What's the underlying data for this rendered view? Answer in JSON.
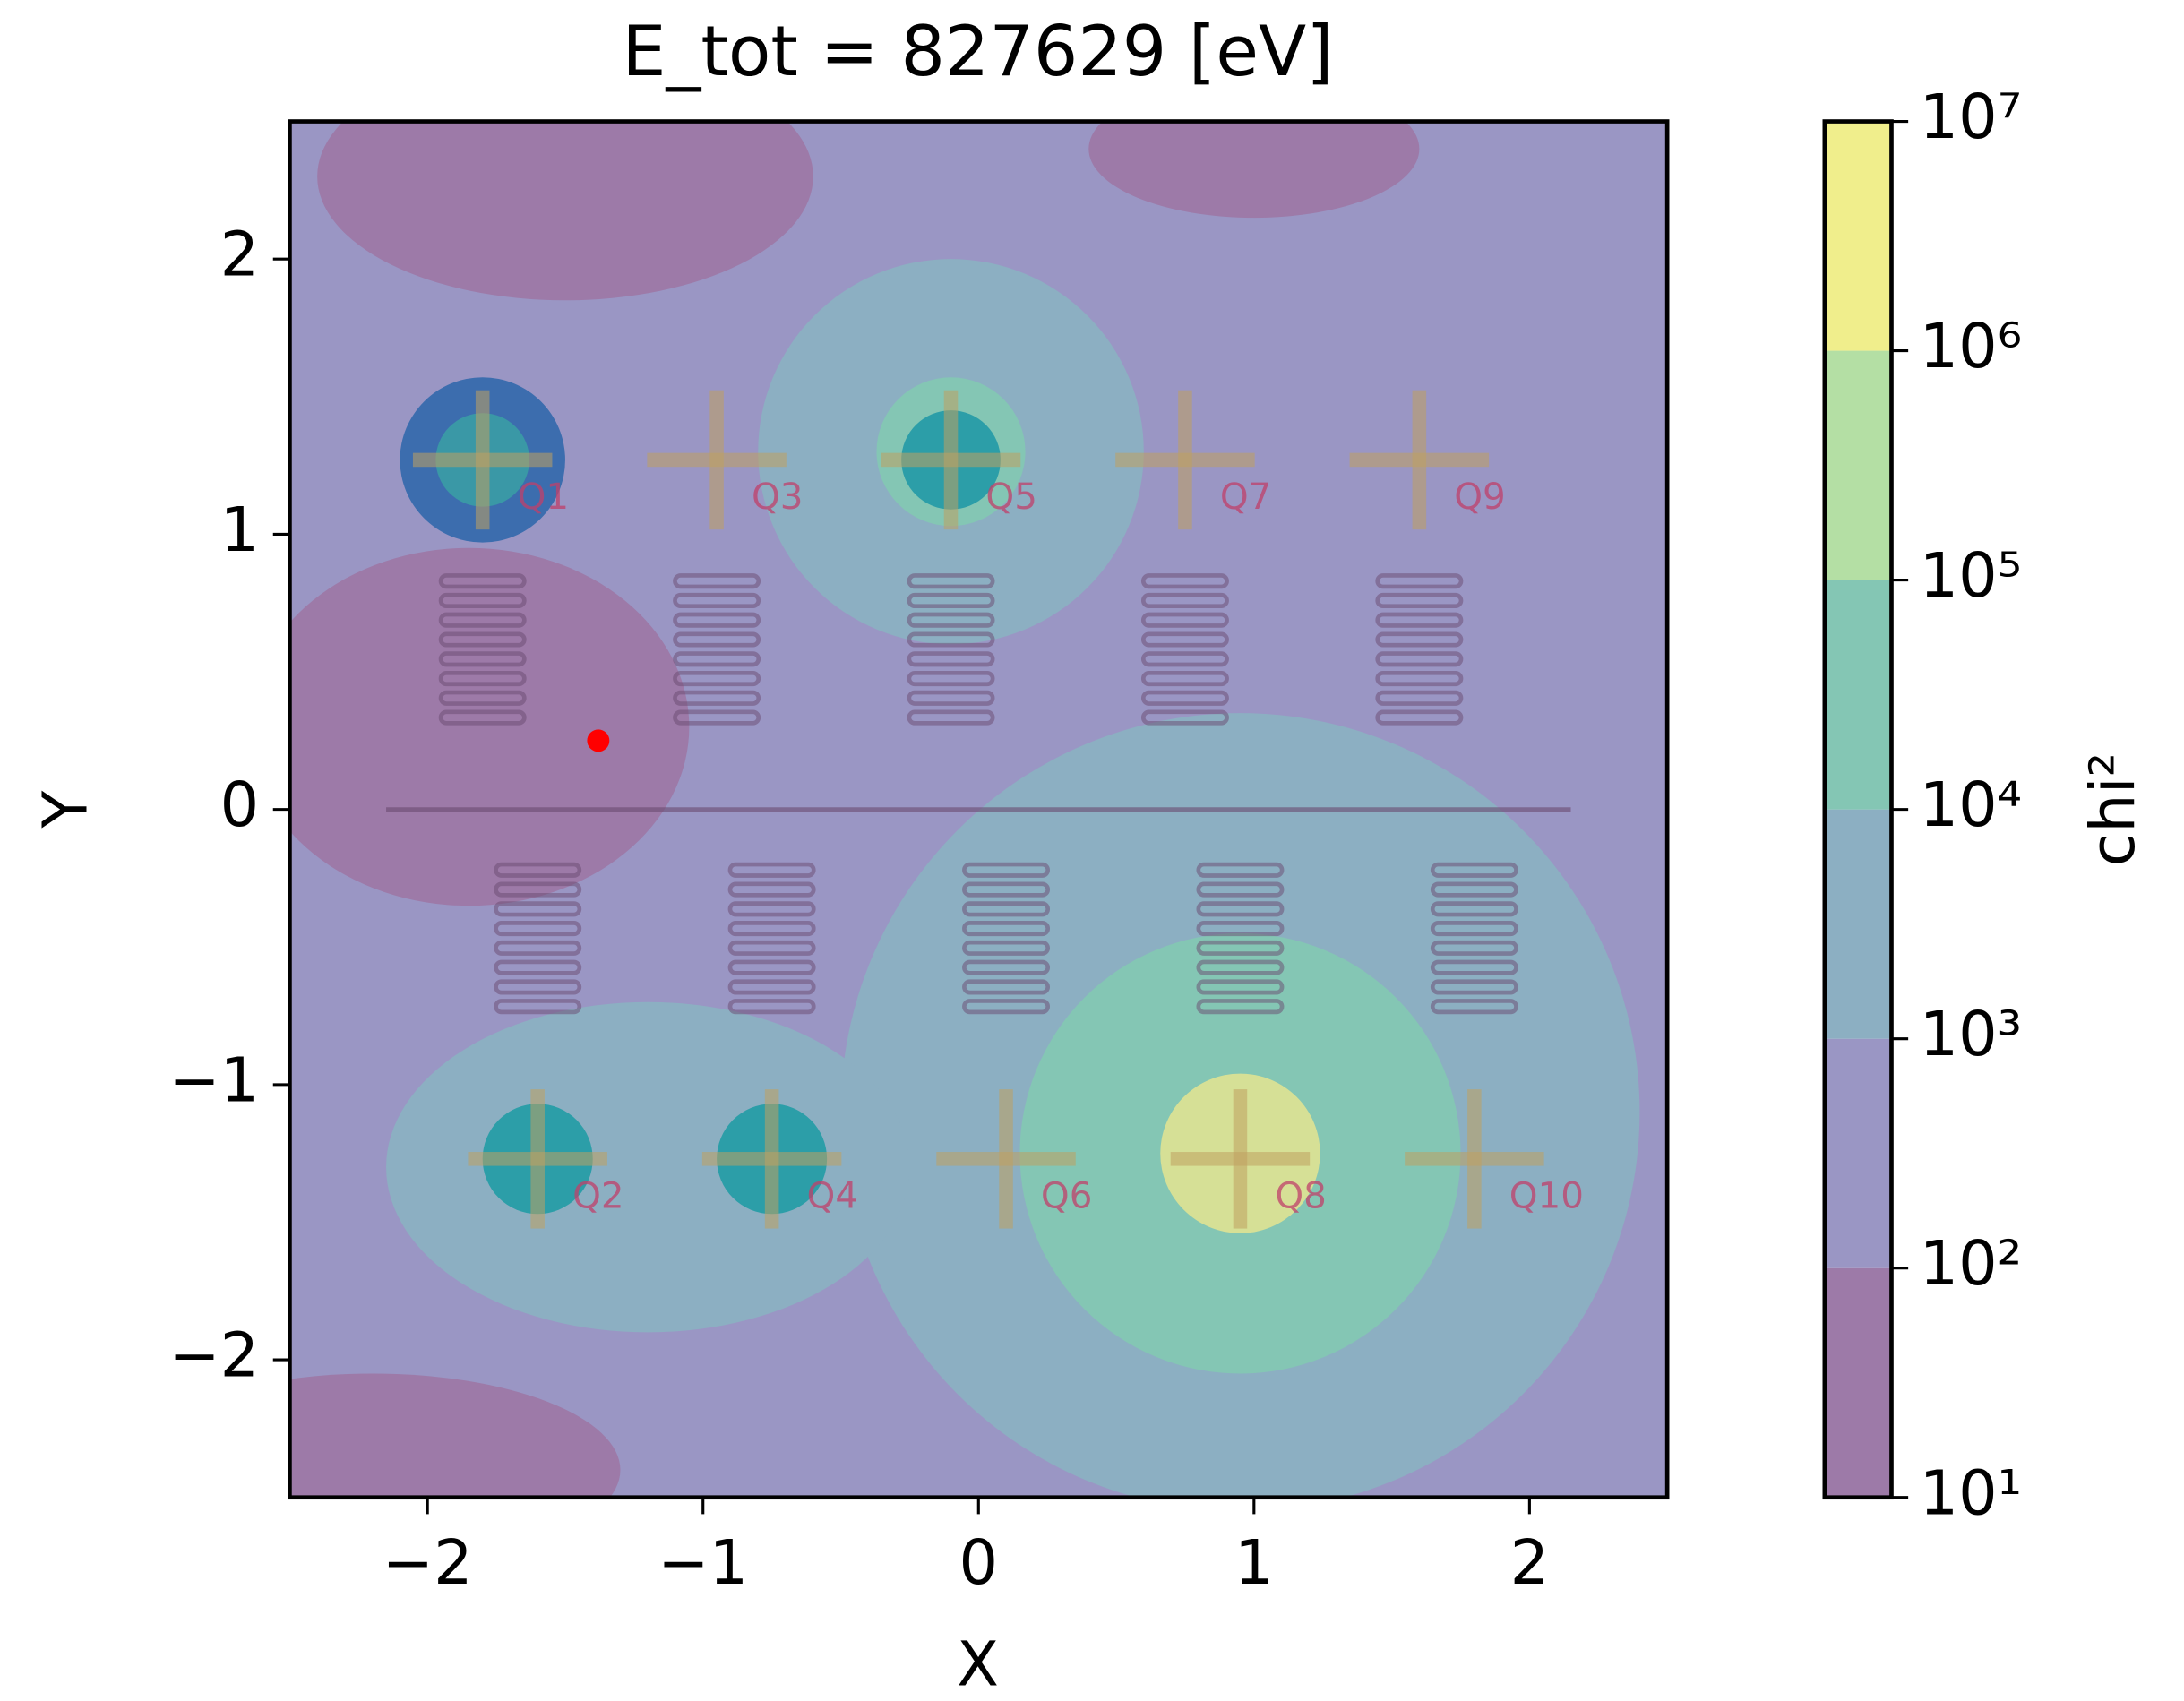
{
  "chart_data": {
    "type": "contour",
    "title": "E_tot = 827629 [eV]",
    "x_label": "X",
    "y_label": "Y",
    "xlim": [
      -2.5,
      2.5
    ],
    "ylim": [
      -2.5,
      2.5
    ],
    "xticks": [
      {
        "value": -2,
        "label": "−2"
      },
      {
        "value": -1,
        "label": "−1"
      },
      0,
      1,
      2
    ],
    "yticks": [
      {
        "value": -2,
        "label": "−2"
      },
      {
        "value": -1,
        "label": "−1"
      },
      0,
      1,
      2
    ],
    "background_color": "#9a96c4",
    "regions": [
      {
        "x": -1.5,
        "y": 2.3,
        "rx": 0.9,
        "ry": 0.45,
        "color": "#9d7aa8"
      },
      {
        "x": 1.0,
        "y": 2.4,
        "rx": 0.6,
        "ry": 0.25,
        "color": "#9d7aa8"
      },
      {
        "x": -1.85,
        "y": 0.3,
        "rx": 0.8,
        "ry": 0.65,
        "color": "#9d7aa8"
      },
      {
        "x": -2.2,
        "y": -2.4,
        "rx": 0.9,
        "ry": 0.35,
        "color": "#9d7aa8"
      },
      {
        "x": 0.95,
        "y": -1.1,
        "rx": 1.45,
        "ry": 1.45,
        "color": "#8cafc2"
      },
      {
        "x": -1.2,
        "y": -1.3,
        "rx": 0.95,
        "ry": 0.6,
        "color": "#8cafc2"
      },
      {
        "x": -0.1,
        "y": 1.3,
        "rx": 0.7,
        "ry": 0.7,
        "color": "#8cafc2"
      },
      {
        "x": 0.95,
        "y": -1.25,
        "rx": 0.8,
        "ry": 0.8,
        "color": "#84c6b4"
      },
      {
        "x": -0.1,
        "y": 1.3,
        "rx": 0.27,
        "ry": 0.27,
        "color": "#84c6b4"
      },
      {
        "x": 0.95,
        "y": -1.25,
        "rx": 0.29,
        "ry": 0.29,
        "color": "#d6e096"
      },
      {
        "x": -1.6,
        "y": -1.27,
        "rx": 0.2,
        "ry": 0.2,
        "color": "#2c9ea8"
      },
      {
        "x": -0.75,
        "y": -1.27,
        "rx": 0.2,
        "ry": 0.2,
        "color": "#2c9ea8"
      },
      {
        "x": -0.1,
        "y": 1.27,
        "rx": 0.18,
        "ry": 0.18,
        "color": "#2c9ea8"
      },
      {
        "x": -1.8,
        "y": 1.27,
        "rx": 0.3,
        "ry": 0.3,
        "color": "#3c6dae"
      },
      {
        "x": -1.8,
        "y": 1.27,
        "rx": 0.17,
        "ry": 0.17,
        "color": "#3a98a6"
      }
    ],
    "qubit_labels": [
      "Q1",
      "Q2",
      "Q3",
      "Q4",
      "Q5",
      "Q6",
      "Q7",
      "Q8",
      "Q9",
      "Q10"
    ],
    "point": {
      "x": -1.38,
      "y": 0.25,
      "color": "#ff0000"
    },
    "colorbar": {
      "label": "chi²",
      "log": true,
      "lim": [
        10,
        10000000
      ],
      "ticks": [
        {
          "value": 10,
          "label": "10¹"
        },
        {
          "value": 100,
          "label": "10²"
        },
        {
          "value": 1000,
          "label": "10³"
        },
        {
          "value": 10000,
          "label": "10⁴"
        },
        {
          "value": 100000,
          "label": "10⁵"
        },
        {
          "value": 1000000,
          "label": "10⁶"
        },
        {
          "value": 10000000,
          "label": "10⁷"
        }
      ],
      "colors": [
        "#9d7aa8",
        "#9a96c4",
        "#8cafc2",
        "#84c6b4",
        "#b4dfa4",
        "#f0ee8c"
      ]
    }
  }
}
